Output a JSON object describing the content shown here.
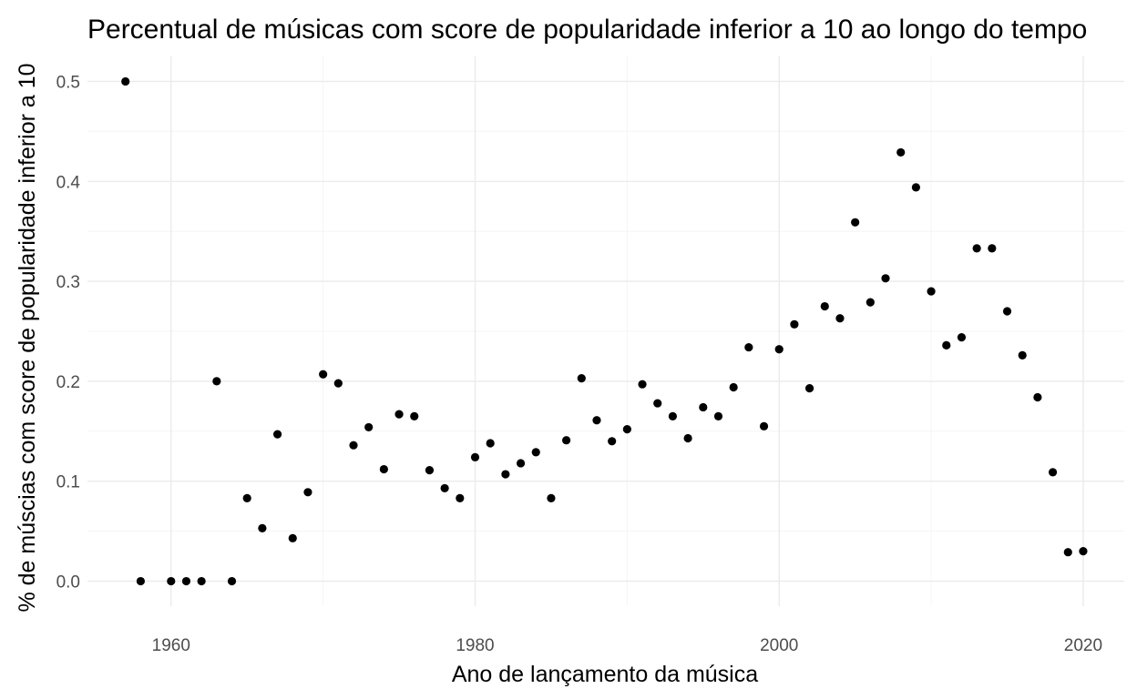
{
  "chart_data": {
    "type": "scatter",
    "title": "Percentual de músicas com score de popularidade inferior a 10 ao longo do tempo",
    "xlabel": "Ano de lançamento da música",
    "ylabel": "% de múscias com score de popularidade inferior a 10",
    "xlim": [
      1954.5,
      2022.7
    ],
    "ylim": [
      -0.025,
      0.525
    ],
    "xticks": [
      1960,
      1980,
      2000,
      2020
    ],
    "yticks": [
      0.0,
      0.1,
      0.2,
      0.3,
      0.4,
      0.5
    ],
    "xtick_labels": [
      "1960",
      "1980",
      "2000",
      "2020"
    ],
    "ytick_labels": [
      "0.0",
      "0.1",
      "0.2",
      "0.3",
      "0.4",
      "0.5"
    ],
    "grid": true,
    "legend": "none",
    "point_color": "#000000",
    "grid_color": "#ebebeb",
    "x": [
      1957,
      1958,
      1960,
      1961,
      1962,
      1963,
      1964,
      1965,
      1966,
      1967,
      1968,
      1969,
      1970,
      1971,
      1972,
      1973,
      1974,
      1975,
      1976,
      1977,
      1978,
      1979,
      1980,
      1981,
      1982,
      1983,
      1984,
      1985,
      1986,
      1987,
      1988,
      1989,
      1990,
      1991,
      1992,
      1993,
      1994,
      1995,
      1996,
      1997,
      1998,
      1999,
      2000,
      2001,
      2002,
      2003,
      2004,
      2005,
      2006,
      2007,
      2008,
      2009,
      2010,
      2011,
      2012,
      2013,
      2014,
      2015,
      2016,
      2017,
      2018,
      2019,
      2020
    ],
    "y": [
      0.5,
      0.0,
      0.0,
      0.0,
      0.0,
      0.2,
      0.0,
      0.083,
      0.053,
      0.147,
      0.043,
      0.089,
      0.207,
      0.198,
      0.136,
      0.154,
      0.112,
      0.167,
      0.165,
      0.111,
      0.093,
      0.083,
      0.124,
      0.138,
      0.107,
      0.118,
      0.129,
      0.083,
      0.141,
      0.203,
      0.161,
      0.14,
      0.152,
      0.197,
      0.178,
      0.165,
      0.143,
      0.174,
      0.165,
      0.194,
      0.234,
      0.155,
      0.232,
      0.257,
      0.193,
      0.275,
      0.263,
      0.359,
      0.279,
      0.303,
      0.429,
      0.394,
      0.29,
      0.236,
      0.244,
      0.333,
      0.333,
      0.27,
      0.226,
      0.184,
      0.109,
      0.029,
      0.03
    ]
  }
}
